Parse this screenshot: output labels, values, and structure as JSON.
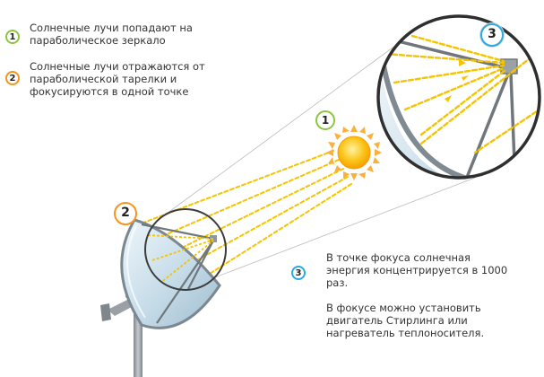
{
  "steps": [
    {
      "number": "1",
      "color": "#8cc63f",
      "text": "Солнечные лучи попадают на\nпараболическое зеркало"
    },
    {
      "number": "2",
      "color": "#f7941d",
      "text": "Солнечные лучи отражаются от\nпараболической тарелки и\nфокусируются в одной точке"
    },
    {
      "number": "3",
      "color": "#29abe2",
      "text": "В точке фокуса солнечная\nэнергия концентрируется в 1000\nраз.\n\nВ фокусе можно установить\nдвигатель Стирлинга или\nнагреватель теплоносителя."
    }
  ],
  "colors": {
    "ray": "#f5c400",
    "sun": "#fbb03b",
    "dish": "#c9dde8",
    "frame": "#8a8f94"
  }
}
